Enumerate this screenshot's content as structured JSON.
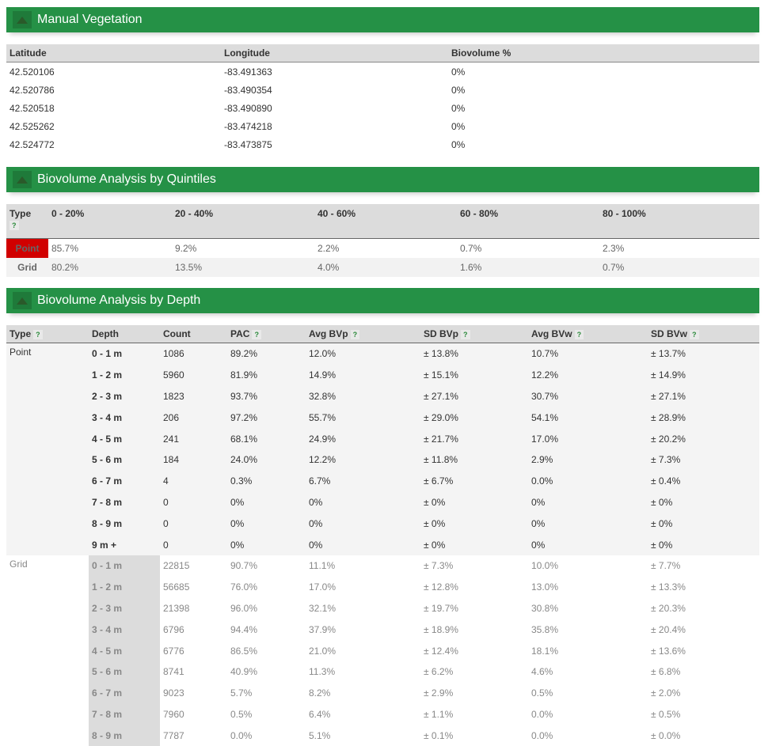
{
  "sections": {
    "manual_vegetation": "Manual Vegetation",
    "quintiles": "Biovolume Analysis by Quintiles",
    "depth": "Biovolume Analysis by Depth"
  },
  "help_mark": "?",
  "veg": {
    "headers": [
      "Latitude",
      "Longitude",
      "Biovolume %"
    ],
    "rows": [
      [
        "42.520106",
        "-83.491363",
        "0%"
      ],
      [
        "42.520786",
        "-83.490354",
        "0%"
      ],
      [
        "42.520518",
        "-83.490890",
        "0%"
      ],
      [
        "42.525262",
        "-83.474218",
        "0%"
      ],
      [
        "42.524772",
        "-83.473875",
        "0%"
      ]
    ]
  },
  "quint": {
    "headers": [
      "Type",
      "0 - 20%",
      "20 - 40%",
      "40 - 60%",
      "60 - 80%",
      "80 - 100%"
    ],
    "rows": [
      {
        "type": "Point",
        "values": [
          "85.7%",
          "9.2%",
          "2.2%",
          "0.7%",
          "2.3%"
        ]
      },
      {
        "type": "Grid",
        "values": [
          "80.2%",
          "13.5%",
          "4.0%",
          "1.6%",
          "0.7%"
        ]
      }
    ]
  },
  "depth": {
    "headers": [
      "Type",
      "Depth",
      "Count",
      "PAC",
      "Avg BVp",
      "SD BVp",
      "Avg BVw",
      "SD BVw"
    ],
    "groups": [
      {
        "type": "Point",
        "rows": [
          [
            "0 - 1 m",
            "1086",
            "89.2%",
            "12.0%",
            "± 13.8%",
            "10.7%",
            "± 13.7%"
          ],
          [
            "1 - 2 m",
            "5960",
            "81.9%",
            "14.9%",
            "± 15.1%",
            "12.2%",
            "± 14.9%"
          ],
          [
            "2 - 3 m",
            "1823",
            "93.7%",
            "32.8%",
            "± 27.1%",
            "30.7%",
            "± 27.1%"
          ],
          [
            "3 - 4 m",
            "206",
            "97.2%",
            "55.7%",
            "± 29.0%",
            "54.1%",
            "± 28.9%"
          ],
          [
            "4 - 5 m",
            "241",
            "68.1%",
            "24.9%",
            "± 21.7%",
            "17.0%",
            "± 20.2%"
          ],
          [
            "5 - 6 m",
            "184",
            "24.0%",
            "12.2%",
            "± 11.8%",
            "2.9%",
            "± 7.3%"
          ],
          [
            "6 - 7 m",
            "4",
            "0.3%",
            "6.7%",
            "± 6.7%",
            "0.0%",
            "± 0.4%"
          ],
          [
            "7 - 8 m",
            "0",
            "0%",
            "0%",
            "± 0%",
            "0%",
            "± 0%"
          ],
          [
            "8 - 9 m",
            "0",
            "0%",
            "0%",
            "± 0%",
            "0%",
            "± 0%"
          ],
          [
            "9 m +",
            "0",
            "0%",
            "0%",
            "± 0%",
            "0%",
            "± 0%"
          ]
        ]
      },
      {
        "type": "Grid",
        "rows": [
          [
            "0 - 1 m",
            "22815",
            "90.7%",
            "11.1%",
            "± 7.3%",
            "10.0%",
            "± 7.7%"
          ],
          [
            "1 - 2 m",
            "56685",
            "76.0%",
            "17.0%",
            "± 12.8%",
            "13.0%",
            "± 13.3%"
          ],
          [
            "2 - 3 m",
            "21398",
            "96.0%",
            "32.1%",
            "± 19.7%",
            "30.8%",
            "± 20.3%"
          ],
          [
            "3 - 4 m",
            "6796",
            "94.4%",
            "37.9%",
            "± 18.9%",
            "35.8%",
            "± 20.4%"
          ],
          [
            "4 - 5 m",
            "6776",
            "86.5%",
            "21.0%",
            "± 12.4%",
            "18.1%",
            "± 13.6%"
          ],
          [
            "5 - 6 m",
            "8741",
            "40.9%",
            "11.3%",
            "± 6.2%",
            "4.6%",
            "± 6.8%"
          ],
          [
            "6 - 7 m",
            "9023",
            "5.7%",
            "8.2%",
            "± 2.9%",
            "0.5%",
            "± 2.0%"
          ],
          [
            "7 - 8 m",
            "7960",
            "0.5%",
            "6.4%",
            "± 1.1%",
            "0.0%",
            "± 0.5%"
          ],
          [
            "8 - 9 m",
            "7787",
            "0.0%",
            "5.1%",
            "± 0.1%",
            "0.0%",
            "± 0.0%"
          ]
        ]
      }
    ]
  },
  "colors": {
    "header_green": "#259146",
    "badge_red": "#d10000",
    "help_green": "#2a8a3a"
  }
}
